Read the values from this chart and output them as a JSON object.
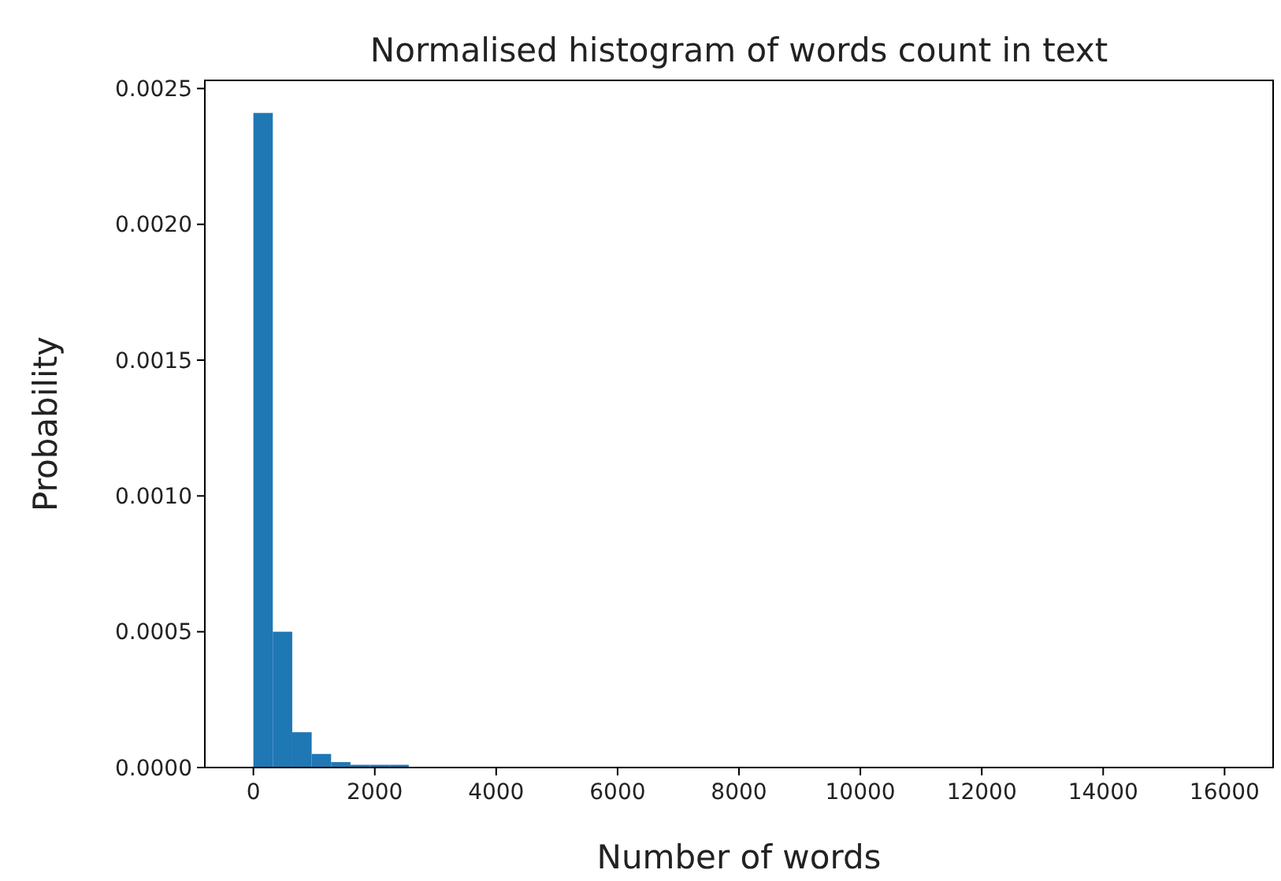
{
  "chart_data": {
    "type": "histogram",
    "title": "Normalised histogram of words count in text",
    "xlabel": "Number of words",
    "ylabel": "Probability",
    "color": "#1f77b4",
    "bins": [
      0,
      320,
      640,
      960,
      1280,
      1600,
      1920,
      2240,
      2560,
      2880,
      3200,
      3520,
      3840,
      4160,
      4480,
      4800,
      5120,
      5440,
      5760,
      6080,
      6400,
      6720,
      7040,
      7360,
      7680,
      8000,
      8320,
      8640,
      8960,
      9280,
      9600,
      9920,
      10240,
      10560,
      10880,
      11200,
      11520,
      11840,
      12160,
      12480,
      12800,
      13120,
      13440,
      13760,
      14080,
      14400,
      14720,
      15040,
      15360,
      15680,
      16000
    ],
    "values": [
      0.00241,
      0.0005,
      0.00013,
      5e-05,
      2e-05,
      1e-05,
      1e-05,
      1e-05,
      0,
      0,
      0,
      0,
      0,
      0,
      0,
      0,
      0,
      0,
      0,
      0,
      0,
      0,
      0,
      0,
      0,
      0,
      0,
      0,
      0,
      0,
      0,
      0,
      0,
      0,
      0,
      0,
      0,
      0,
      0,
      0,
      0,
      0,
      0,
      0,
      0,
      0,
      0,
      0,
      0,
      0
    ],
    "xlim": [
      -800,
      16800
    ],
    "xticks": [
      0,
      2000,
      4000,
      6000,
      8000,
      10000,
      12000,
      14000,
      16000
    ],
    "ylim": [
      0,
      0.00253
    ],
    "yticks": [
      {
        "value": 0,
        "label": "0.0000"
      },
      {
        "value": 0.0005,
        "label": "0.0005"
      },
      {
        "value": 0.001,
        "label": "0.0010"
      },
      {
        "value": 0.0015,
        "label": "0.0015"
      },
      {
        "value": 0.002,
        "label": "0.0020"
      },
      {
        "value": 0.0025,
        "label": "0.0025"
      }
    ],
    "grid": false
  }
}
